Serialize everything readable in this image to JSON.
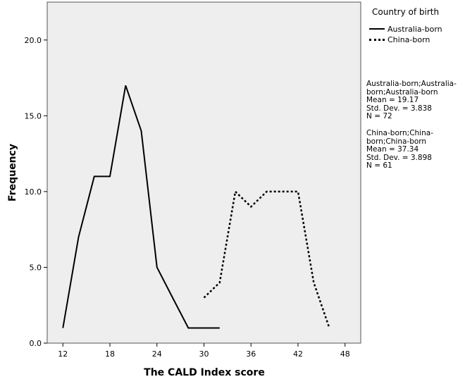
{
  "chart_data": {
    "type": "line",
    "xlabel": "The CALD Index score",
    "ylabel": "Frequency",
    "xlim": [
      10,
      50
    ],
    "ylim": [
      0,
      22.5
    ],
    "x_ticks": [
      12,
      18,
      24,
      30,
      36,
      42,
      48
    ],
    "y_ticks": [
      0.0,
      5.0,
      10.0,
      15.0,
      20.0
    ],
    "y_tick_labels": [
      "0.0",
      "5.0",
      "10.0",
      "15.0",
      "20.0"
    ],
    "grid": false,
    "legend_title": "Country of birth",
    "legend_position": "right",
    "series": [
      {
        "name": "Australia-born",
        "style": "solid",
        "color": "#000000",
        "x": [
          12,
          14,
          16,
          18,
          20,
          22,
          24,
          26,
          28,
          30,
          32
        ],
        "y": [
          1,
          7,
          11,
          11,
          17,
          14,
          5,
          3,
          1,
          1,
          1
        ]
      },
      {
        "name": "China-born",
        "style": "dotted",
        "color": "#000000",
        "x": [
          30,
          32,
          34,
          36,
          38,
          40,
          42,
          44,
          46
        ],
        "y": [
          3,
          4,
          10,
          9,
          10,
          10,
          10,
          4,
          1
        ]
      }
    ],
    "stats": [
      {
        "label": "Australia-born;Australia-born;Australia-born",
        "mean": "Mean = 19.17",
        "sd": "Std. Dev. = 3.838",
        "n": "N = 72"
      },
      {
        "label": "China-born;China-born;China-born",
        "mean": "Mean = 37.34",
        "sd": "Std. Dev. = 3.898",
        "n": "N = 61"
      }
    ]
  },
  "colors": {
    "plot_background": "#eeeeee",
    "frame": "#555555",
    "line": "#000000"
  }
}
